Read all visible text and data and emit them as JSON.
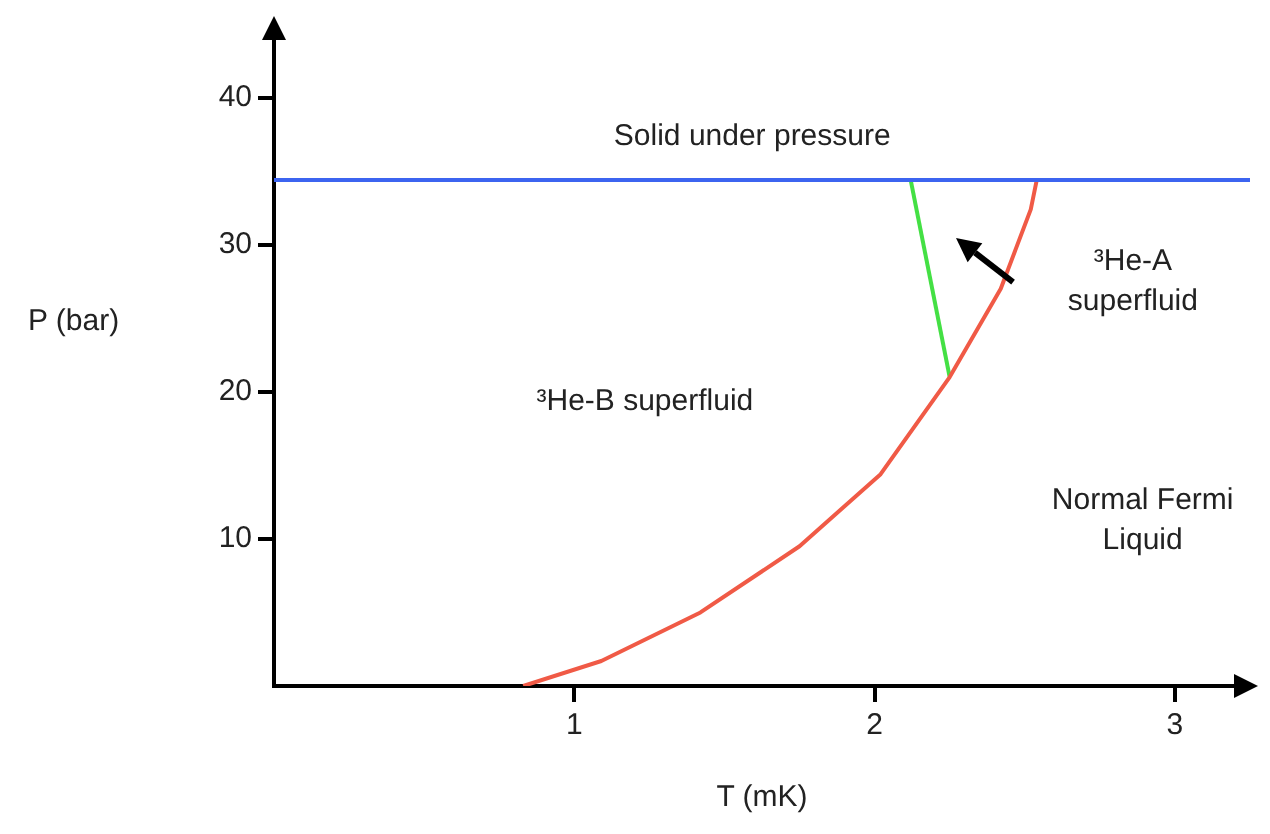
{
  "chart_data": {
    "type": "line",
    "xlabel": "T (mK)",
    "ylabel": "P (bar)",
    "xlim": [
      0,
      3.25
    ],
    "ylim": [
      0,
      45
    ],
    "xticks": [
      1,
      2,
      3
    ],
    "yticks": [
      10,
      20,
      30,
      40
    ],
    "grid": false,
    "legend": false,
    "marker": "none",
    "line_style": "solid",
    "series": [
      {
        "color": "#f05a46",
        "x": [
          0.83,
          1.09,
          1.42,
          1.75,
          2.02,
          2.25,
          2.42,
          2.52,
          2.54
        ],
        "values": [
          0,
          1.7,
          5,
          9.5,
          14.4,
          21,
          27,
          32.4,
          34.4
        ]
      },
      {
        "color": "#44e044",
        "x": [
          2.12,
          2.25
        ],
        "values": [
          34.4,
          21
        ]
      }
    ],
    "ref_lines": [
      {
        "axis": "y",
        "value": 34.4,
        "color": "#3c64f0"
      }
    ],
    "annotations": [
      "Solid under pressure",
      "³He-A\nsuperfluid",
      "³He-B superfluid",
      "Normal Fermi\nLiquid"
    ]
  }
}
